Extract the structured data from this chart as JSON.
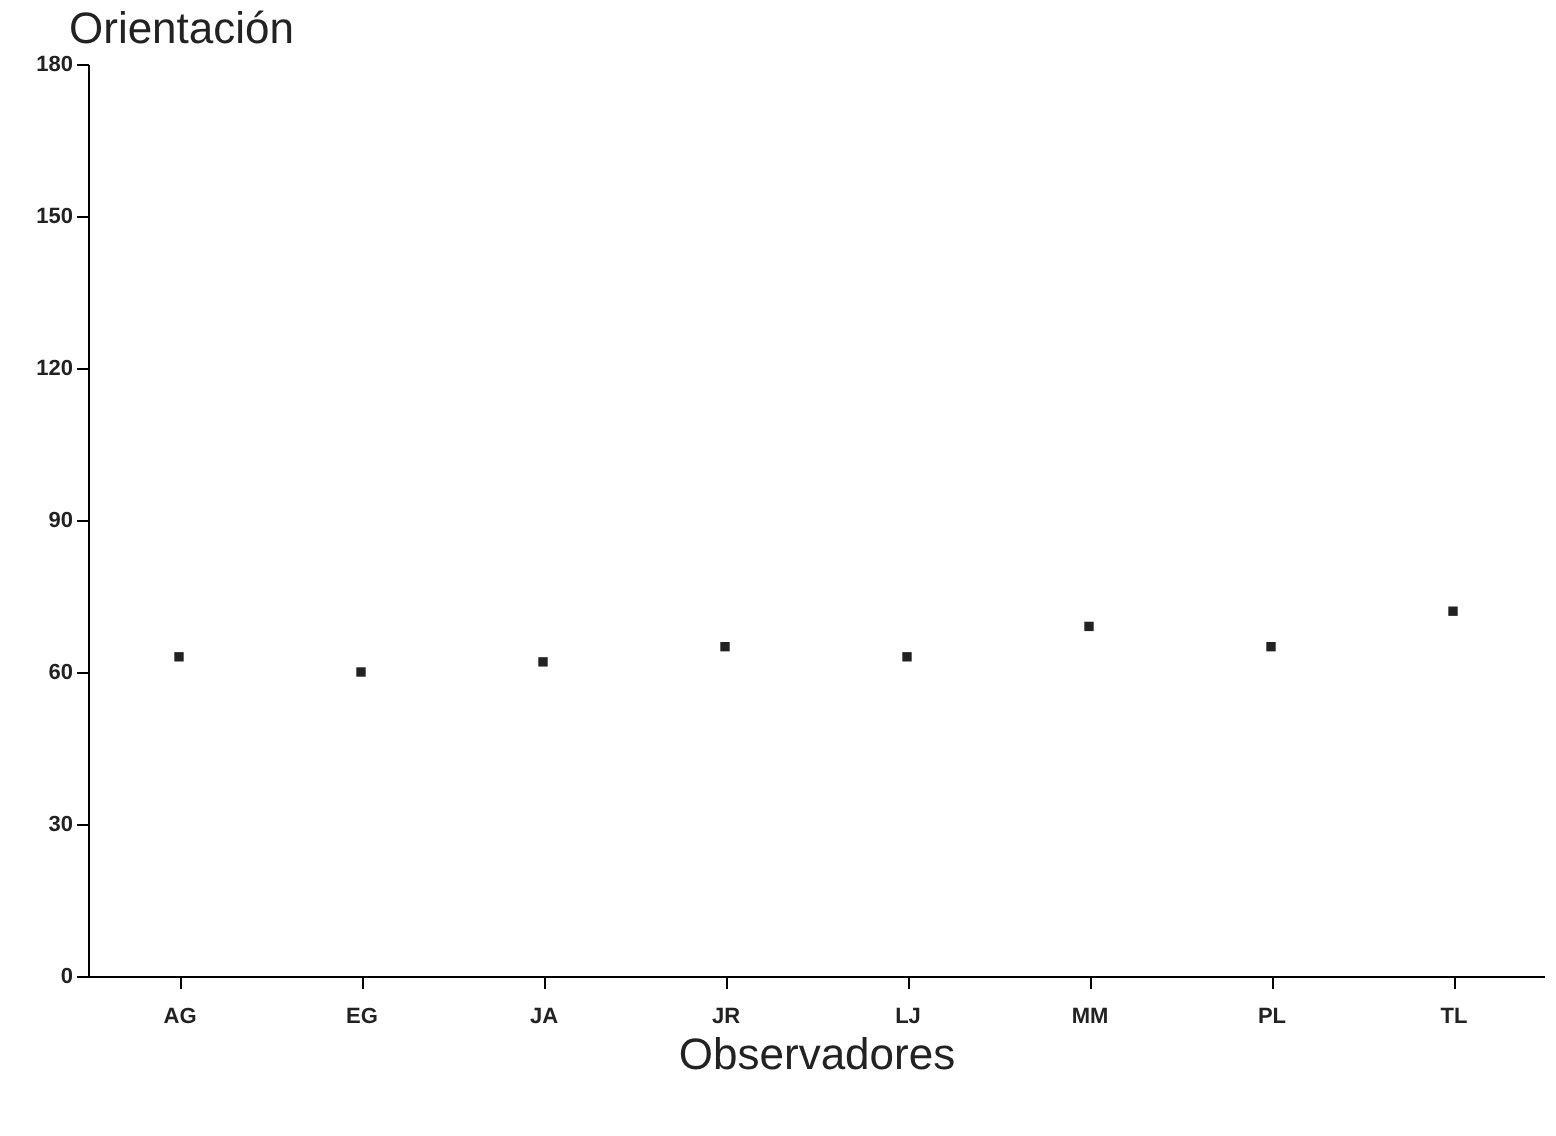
{
  "chart_data": {
    "type": "scatter",
    "ylabel": "Orientación",
    "xlabel": "Observadores",
    "categories": [
      "AG",
      "EG",
      "JA",
      "JR",
      "LJ",
      "MM",
      "PL",
      "TL"
    ],
    "series": [
      {
        "color": "#222222",
        "values": [
          63,
          60,
          62,
          65,
          63,
          69,
          65,
          72
        ]
      }
    ],
    "ylim": [
      0,
      180
    ],
    "yticks": [
      0,
      30,
      60,
      90,
      120,
      150,
      180
    ],
    "grid": false,
    "marker": "square"
  }
}
